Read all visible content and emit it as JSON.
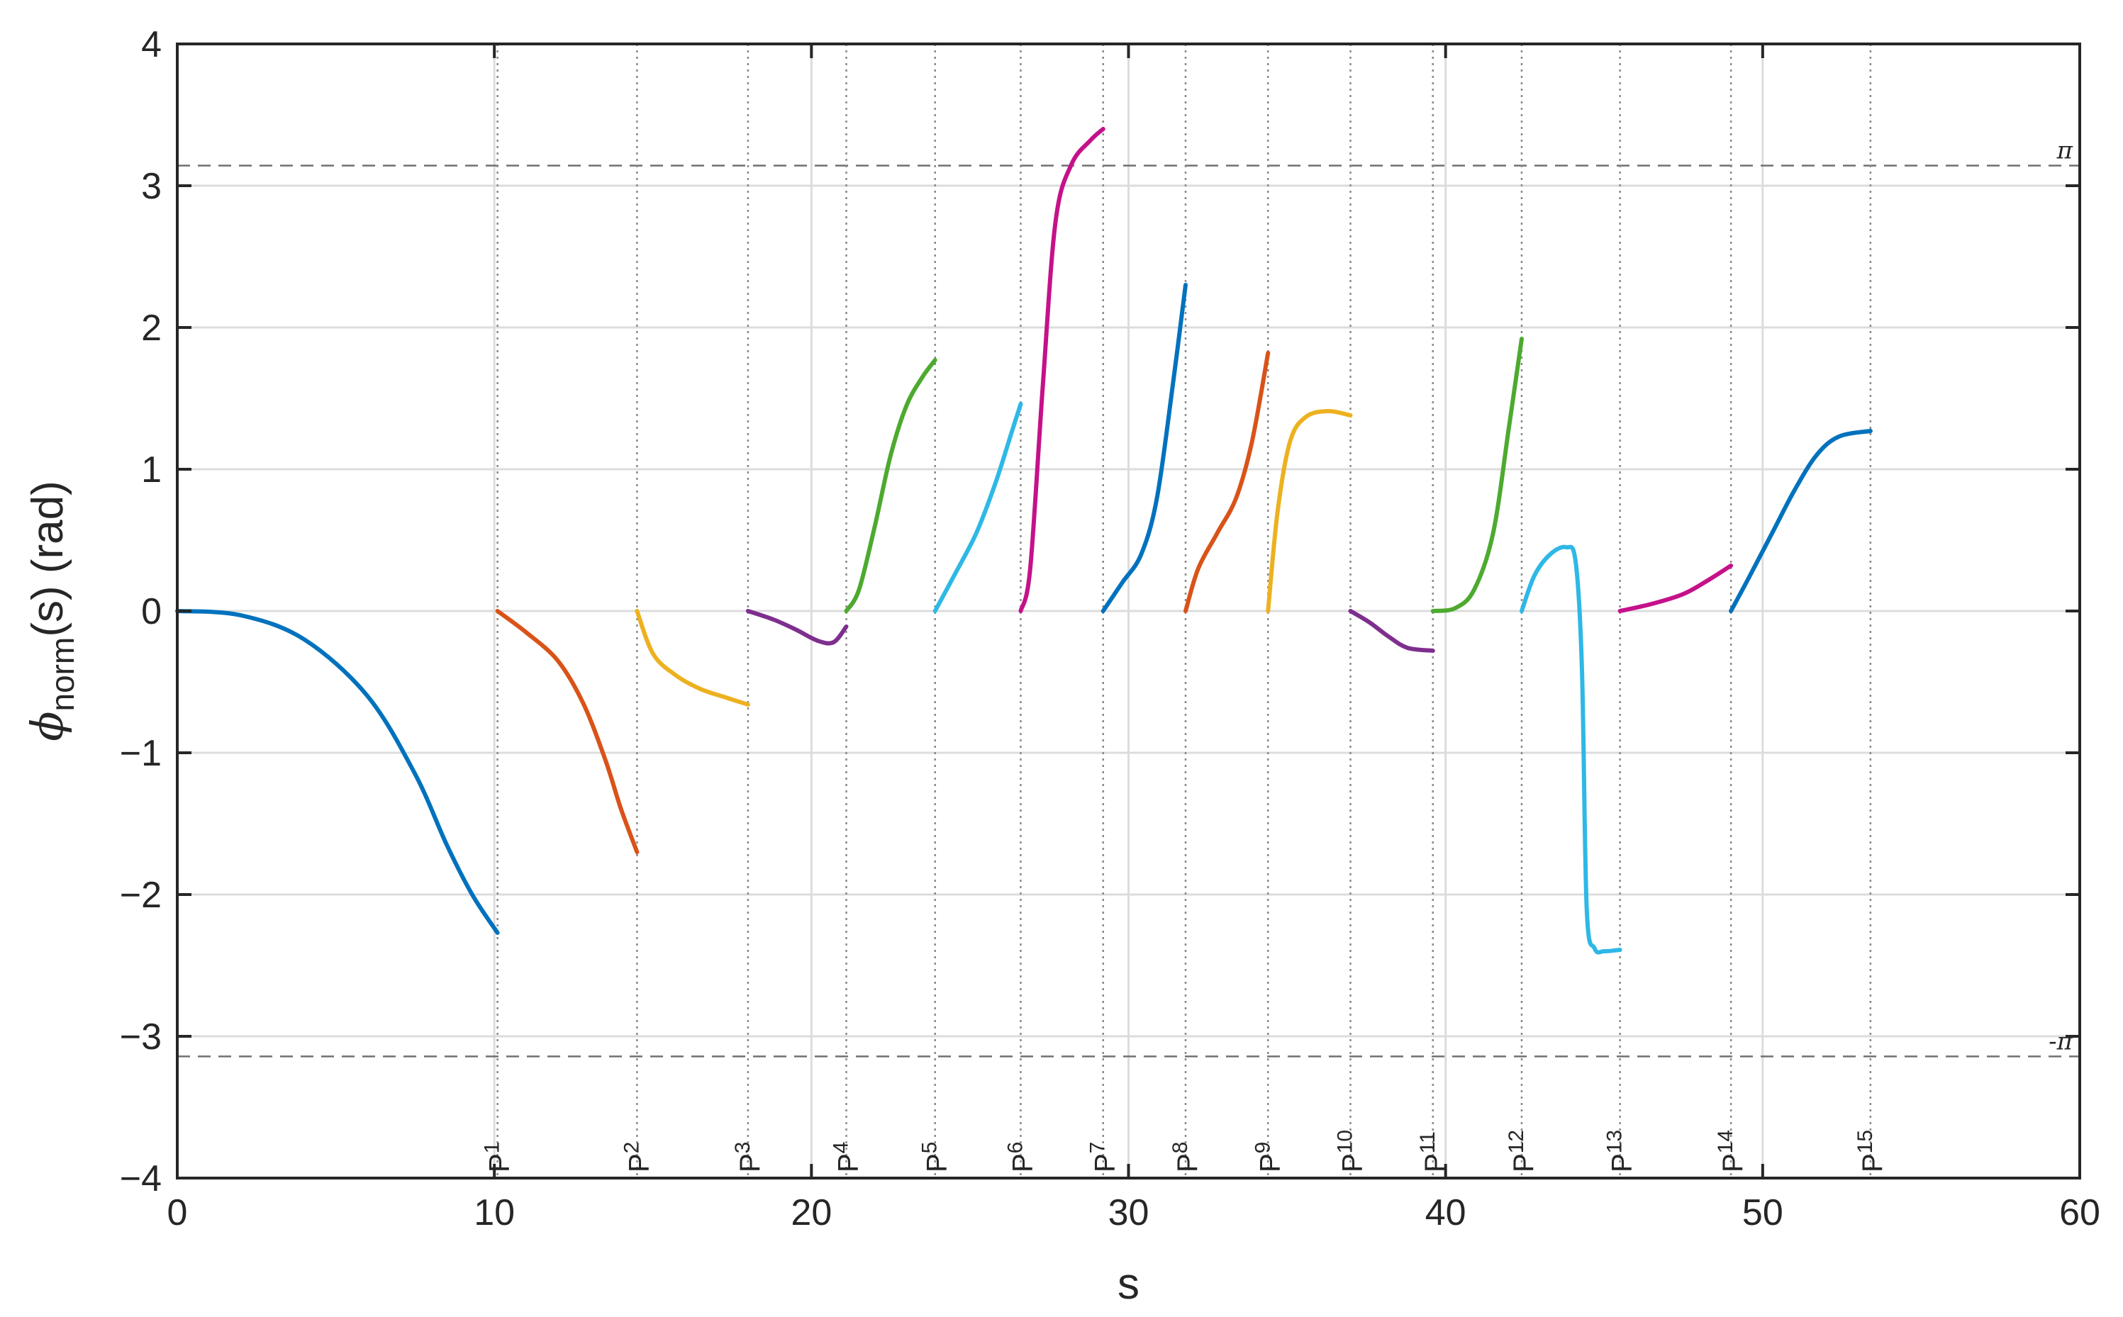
{
  "chart_data": {
    "type": "line",
    "xlabel": "s",
    "ylabel": {
      "symbol": "ϕ",
      "subscript": "norm",
      "suffix": "(s) (rad)"
    },
    "xlim": [
      0,
      60
    ],
    "ylim": [
      -4,
      4
    ],
    "x_ticks": [
      0,
      10,
      20,
      30,
      40,
      50,
      60
    ],
    "y_ticks": [
      -4,
      -3,
      -2,
      -1,
      0,
      1,
      2,
      3,
      4
    ],
    "x_tick_labels": [
      "0",
      "10",
      "20",
      "30",
      "40",
      "50",
      "60"
    ],
    "y_tick_labels": [
      "−4",
      "−3",
      "−2",
      "−1",
      "0",
      "1",
      "2",
      "3",
      "4"
    ],
    "grid": true,
    "reference_lines": [
      {
        "y": 3.14159,
        "label": "π",
        "style": "dashed"
      },
      {
        "y": -3.14159,
        "label": "-π",
        "style": "dashed"
      }
    ],
    "markers": [
      {
        "x": 10.1,
        "label": "P",
        "sub": "1"
      },
      {
        "x": 14.5,
        "label": "P",
        "sub": "2"
      },
      {
        "x": 18.0,
        "label": "P",
        "sub": "3"
      },
      {
        "x": 21.1,
        "label": "P",
        "sub": "4"
      },
      {
        "x": 23.9,
        "label": "P",
        "sub": "5"
      },
      {
        "x": 26.6,
        "label": "P",
        "sub": "6"
      },
      {
        "x": 29.2,
        "label": "P",
        "sub": "7"
      },
      {
        "x": 31.8,
        "label": "P",
        "sub": "8"
      },
      {
        "x": 34.4,
        "label": "P",
        "sub": "9"
      },
      {
        "x": 37.0,
        "label": "P",
        "sub": "10"
      },
      {
        "x": 39.6,
        "label": "P",
        "sub": "11"
      },
      {
        "x": 42.4,
        "label": "P",
        "sub": "12"
      },
      {
        "x": 45.5,
        "label": "P",
        "sub": "13"
      },
      {
        "x": 49.0,
        "label": "P",
        "sub": "14"
      },
      {
        "x": 53.4,
        "label": "P",
        "sub": "15"
      }
    ],
    "series": [
      {
        "color": "#0072BD",
        "points": [
          [
            0,
            0
          ],
          [
            2,
            -0.03
          ],
          [
            4,
            -0.2
          ],
          [
            6,
            -0.6
          ],
          [
            7.5,
            -1.15
          ],
          [
            8.5,
            -1.65
          ],
          [
            9.3,
            -2.0
          ],
          [
            10.1,
            -2.27
          ]
        ]
      },
      {
        "color": "#D95319",
        "points": [
          [
            10.1,
            0
          ],
          [
            11.0,
            -0.15
          ],
          [
            12.0,
            -0.35
          ],
          [
            12.8,
            -0.65
          ],
          [
            13.5,
            -1.05
          ],
          [
            14.0,
            -1.4
          ],
          [
            14.5,
            -1.7
          ]
        ]
      },
      {
        "color": "#EDB120",
        "points": [
          [
            14.5,
            0
          ],
          [
            15.0,
            -0.3
          ],
          [
            15.7,
            -0.45
          ],
          [
            16.5,
            -0.55
          ],
          [
            17.3,
            -0.61
          ],
          [
            18.0,
            -0.66
          ]
        ]
      },
      {
        "color": "#7E2F8E",
        "points": [
          [
            18.0,
            0
          ],
          [
            18.8,
            -0.06
          ],
          [
            19.5,
            -0.13
          ],
          [
            20.2,
            -0.21
          ],
          [
            20.7,
            -0.22
          ],
          [
            21.1,
            -0.11
          ]
        ]
      },
      {
        "color": "#4DAA2F",
        "points": [
          [
            21.1,
            0
          ],
          [
            21.5,
            0.15
          ],
          [
            22.0,
            0.6
          ],
          [
            22.5,
            1.1
          ],
          [
            23.0,
            1.45
          ],
          [
            23.5,
            1.65
          ],
          [
            23.9,
            1.77
          ]
        ]
      },
      {
        "color": "#2EB8E6",
        "points": [
          [
            23.9,
            0
          ],
          [
            24.5,
            0.25
          ],
          [
            25.2,
            0.55
          ],
          [
            25.8,
            0.9
          ],
          [
            26.3,
            1.25
          ],
          [
            26.6,
            1.46
          ]
        ]
      },
      {
        "color": "#C5118A",
        "points": [
          [
            26.6,
            0
          ],
          [
            26.9,
            0.3
          ],
          [
            27.3,
            1.6
          ],
          [
            27.7,
            2.75
          ],
          [
            28.2,
            3.15
          ],
          [
            28.8,
            3.32
          ],
          [
            29.2,
            3.4
          ]
        ]
      },
      {
        "color": "#0072BD",
        "points": [
          [
            29.2,
            0
          ],
          [
            29.8,
            0.2
          ],
          [
            30.4,
            0.4
          ],
          [
            30.9,
            0.8
          ],
          [
            31.4,
            1.6
          ],
          [
            31.8,
            2.3
          ]
        ]
      },
      {
        "color": "#D95319",
        "points": [
          [
            31.8,
            0
          ],
          [
            32.2,
            0.3
          ],
          [
            32.8,
            0.55
          ],
          [
            33.4,
            0.8
          ],
          [
            33.9,
            1.2
          ],
          [
            34.4,
            1.82
          ]
        ]
      },
      {
        "color": "#EDB120",
        "points": [
          [
            34.4,
            0
          ],
          [
            34.7,
            0.7
          ],
          [
            35.1,
            1.2
          ],
          [
            35.6,
            1.37
          ],
          [
            36.3,
            1.41
          ],
          [
            37.0,
            1.38
          ]
        ]
      },
      {
        "color": "#7E2F8E",
        "points": [
          [
            37.0,
            0
          ],
          [
            37.6,
            -0.08
          ],
          [
            38.2,
            -0.18
          ],
          [
            38.8,
            -0.26
          ],
          [
            39.6,
            -0.28
          ]
        ]
      },
      {
        "color": "#4DAA2F",
        "points": [
          [
            39.6,
            0
          ],
          [
            40.3,
            0.02
          ],
          [
            40.9,
            0.15
          ],
          [
            41.5,
            0.55
          ],
          [
            42.0,
            1.3
          ],
          [
            42.4,
            1.92
          ]
        ]
      },
      {
        "color": "#2EB8E6",
        "points": [
          [
            42.4,
            0
          ],
          [
            42.8,
            0.25
          ],
          [
            43.3,
            0.4
          ],
          [
            43.8,
            0.45
          ],
          [
            44.1,
            0.35
          ],
          [
            44.3,
            -0.4
          ],
          [
            44.45,
            -2.1
          ],
          [
            44.7,
            -2.38
          ],
          [
            45.0,
            -2.4
          ],
          [
            45.5,
            -2.39
          ]
        ]
      },
      {
        "color": "#C5118A",
        "points": [
          [
            45.5,
            0
          ],
          [
            46.5,
            0.05
          ],
          [
            47.5,
            0.12
          ],
          [
            48.3,
            0.22
          ],
          [
            49.0,
            0.32
          ]
        ]
      },
      {
        "color": "#0072BD",
        "points": [
          [
            49.0,
            0
          ],
          [
            49.6,
            0.25
          ],
          [
            50.3,
            0.55
          ],
          [
            51.0,
            0.85
          ],
          [
            51.7,
            1.1
          ],
          [
            52.4,
            1.23
          ],
          [
            53.4,
            1.27
          ]
        ]
      }
    ]
  }
}
